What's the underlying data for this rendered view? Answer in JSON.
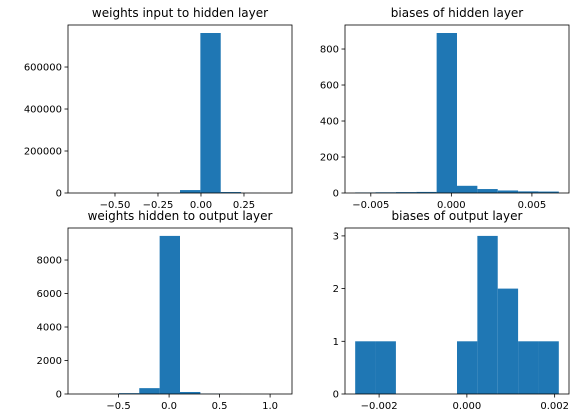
{
  "chart_data": [
    {
      "type": "histogram",
      "title": "weights input to hidden layer",
      "bins": [
        -0.714,
        -0.5956,
        -0.4772,
        -0.3588,
        -0.2404,
        -0.122,
        -0.0036,
        0.1148,
        0.2332,
        0.3516,
        0.47
      ],
      "counts": [
        100,
        200,
        300,
        600,
        1500,
        14000,
        762000,
        4600,
        500,
        200
      ],
      "color": "#1f77b4",
      "xlim": [
        -0.7732,
        0.5292
      ],
      "ylim": [
        0,
        800100
      ],
      "xticks": [
        {
          "value": -0.5,
          "label": "−0.50"
        },
        {
          "value": -0.25,
          "label": "−0.25"
        },
        {
          "value": 0,
          "label": "0.00"
        },
        {
          "value": 0.25,
          "label": "0.25"
        }
      ],
      "yticks": [
        0,
        200000,
        400000,
        600000
      ]
    },
    {
      "type": "histogram",
      "title": "biases of hidden layer",
      "bins": [
        -0.00597,
        -0.004706,
        -0.003442,
        -0.002178,
        -0.000914,
        0.00035,
        0.001614,
        0.002878,
        0.004142,
        0.005406,
        0.00667
      ],
      "counts": [
        3,
        4,
        5,
        6,
        889,
        40,
        22,
        14,
        9,
        8
      ],
      "color": "#1f77b4",
      "xlim": [
        -0.006602,
        0.007302
      ],
      "ylim": [
        0,
        933.45
      ],
      "xticks": [
        {
          "value": -0.005,
          "label": "−0.005"
        },
        {
          "value": 0,
          "label": "0.000"
        },
        {
          "value": 0.005,
          "label": "0.005"
        }
      ],
      "yticks": [
        0,
        200,
        400,
        600,
        800
      ]
    },
    {
      "type": "histogram",
      "title": "weights hidden to output layer",
      "bins": [
        -0.9,
        -0.6984,
        -0.4968,
        -0.2952,
        -0.0936,
        0.108,
        0.3096,
        0.5112,
        0.7128,
        0.9144,
        1.116
      ],
      "counts": [
        1,
        3,
        50,
        350,
        9440,
        120,
        20,
        10,
        4,
        2
      ],
      "color": "#1f77b4",
      "xlim": [
        -1.0008,
        1.2168
      ],
      "ylim": [
        0,
        9912
      ],
      "xticks": [
        {
          "value": -0.5,
          "label": "−0.5"
        },
        {
          "value": 0,
          "label": "0.0"
        },
        {
          "value": 0.5,
          "label": "0.5"
        },
        {
          "value": 1,
          "label": "1.0"
        }
      ],
      "yticks": [
        0,
        2000,
        4000,
        6000,
        8000
      ]
    },
    {
      "type": "histogram",
      "title": "biases of output layer",
      "bins": [
        -0.002545,
        -0.002081,
        -0.001617,
        -0.001153,
        -0.000689,
        -0.000225,
        0.000239,
        0.000703,
        0.001167,
        0.001631,
        0.002095
      ],
      "counts": [
        1,
        1,
        0,
        0,
        0,
        1,
        3,
        2,
        1,
        1
      ],
      "color": "#1f77b4",
      "xlim": [
        -0.002777,
        0.002327
      ],
      "ylim": [
        0,
        3.15
      ],
      "xticks": [
        {
          "value": -0.002,
          "label": "−0.002"
        },
        {
          "value": 0,
          "label": "0.000"
        },
        {
          "value": 0.002,
          "label": "0.002"
        }
      ],
      "yticks": [
        0,
        1,
        2,
        3
      ]
    }
  ]
}
